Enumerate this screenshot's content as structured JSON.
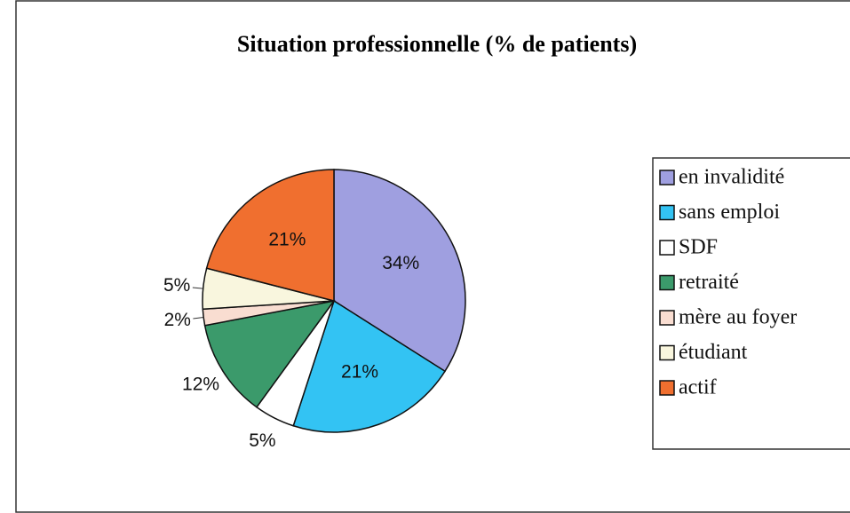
{
  "chart_data": {
    "type": "pie",
    "title": "Situation professionnelle (% de patients)",
    "categories": [
      "en invalidité",
      "sans emploi",
      "SDF",
      "retraité",
      "mère au foyer",
      "étudiant",
      "actif"
    ],
    "values": [
      34,
      21,
      5,
      12,
      2,
      5,
      21
    ],
    "value_labels": [
      "34%",
      "21%",
      "5%",
      "12%",
      "2%",
      "5%",
      "21%"
    ],
    "colors": [
      "#9f9fe0",
      "#33c3f3",
      "#ffffff",
      "#3b9a6b",
      "#f9ddd1",
      "#f9f6de",
      "#f06f2f"
    ],
    "legend": "right"
  }
}
